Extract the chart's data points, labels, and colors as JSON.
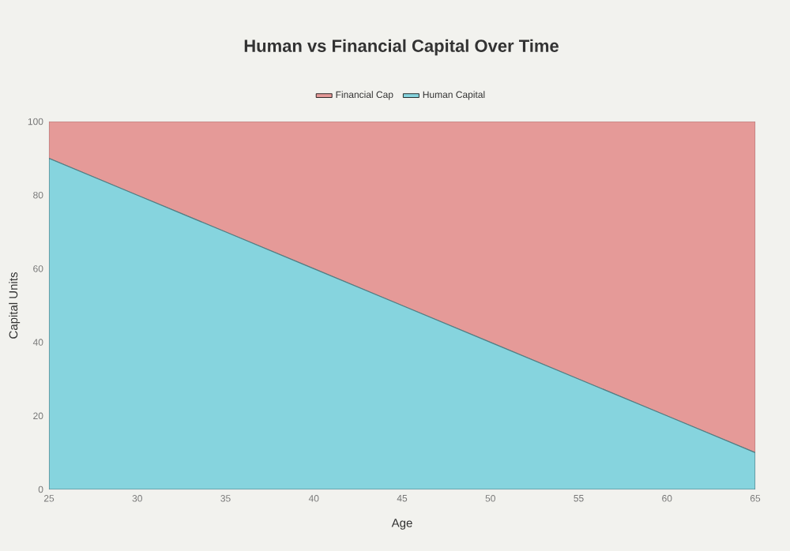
{
  "chart_data": {
    "type": "area",
    "title": "Human vs Financial Capital Over Time",
    "xlabel": "Age",
    "ylabel": "Capital Units",
    "stacked": true,
    "x": [
      25,
      30,
      35,
      40,
      45,
      50,
      55,
      60,
      65
    ],
    "series": [
      {
        "name": "Human Capital",
        "color": "#86d4de",
        "values": [
          90,
          80,
          70,
          60,
          50,
          40,
          30,
          20,
          10
        ]
      },
      {
        "name": "Financial Cap",
        "color": "#e59a98",
        "values": [
          10,
          20,
          30,
          40,
          50,
          60,
          70,
          80,
          90
        ]
      }
    ],
    "xlim": [
      25,
      65
    ],
    "xticks": [
      25,
      30,
      35,
      40,
      45,
      50,
      55,
      60,
      65
    ],
    "ylim": [
      0,
      100
    ],
    "yticks": [
      0,
      20,
      40,
      60,
      80,
      100
    ],
    "grid": true,
    "legend": "top"
  }
}
